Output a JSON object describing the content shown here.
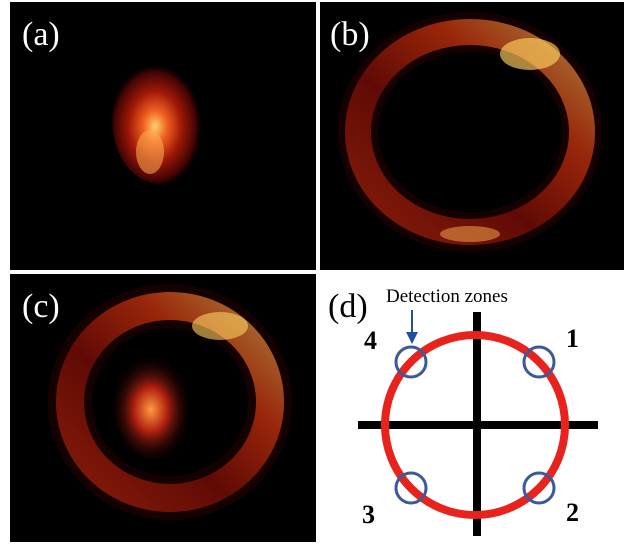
{
  "figure": {
    "panels": [
      {
        "label": "(a)"
      },
      {
        "label": "(b)"
      },
      {
        "label": "(c)"
      },
      {
        "label": "(d)"
      }
    ],
    "schematic": {
      "annotation": "Detection zones",
      "zone_numbers": [
        "1",
        "2",
        "3",
        "4"
      ],
      "colors": {
        "ring": "#e8221c",
        "cross": "#000000",
        "zone": "#3a5a9a",
        "arrow": "#1f4e9e"
      }
    }
  }
}
